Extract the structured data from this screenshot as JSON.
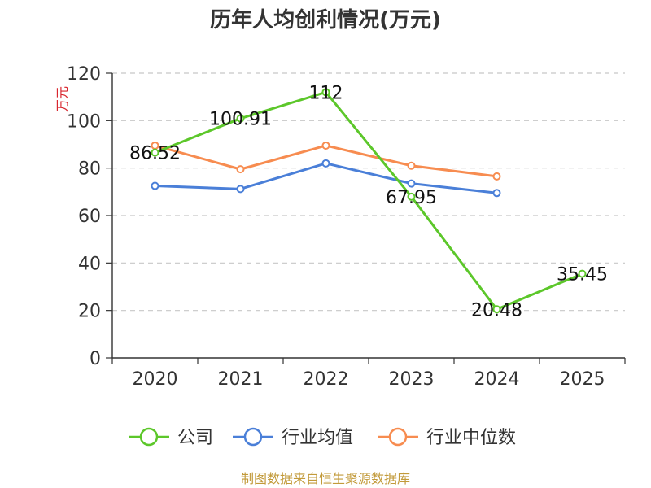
{
  "chart_data": {
    "type": "line",
    "title": "历年人均创利情况(万元)",
    "ylabel": "万元",
    "xlabel": "",
    "categories": [
      "2020",
      "2021",
      "2022",
      "2023",
      "2024",
      "2025"
    ],
    "ylim": [
      0,
      120
    ],
    "yticks": [
      0,
      20,
      40,
      60,
      80,
      100,
      120
    ],
    "grid": true,
    "legend_position": "bottom",
    "series": [
      {
        "name": "公司",
        "color": "#5cc72a",
        "values": [
          86.52,
          100.91,
          112,
          67.95,
          20.48,
          35.45
        ],
        "data_labels": [
          "86.52",
          "100.91",
          "112",
          "67.95",
          "20.48",
          "35.45"
        ]
      },
      {
        "name": "行业均值",
        "color": "#4a7fd8",
        "values": [
          72.5,
          71.2,
          82.0,
          73.5,
          69.5,
          null
        ]
      },
      {
        "name": "行业中位数",
        "color": "#f78c50",
        "values": [
          89.5,
          79.5,
          89.5,
          81.0,
          76.5,
          null
        ]
      }
    ]
  },
  "source_text": "制图数据来自恒生聚源数据库"
}
